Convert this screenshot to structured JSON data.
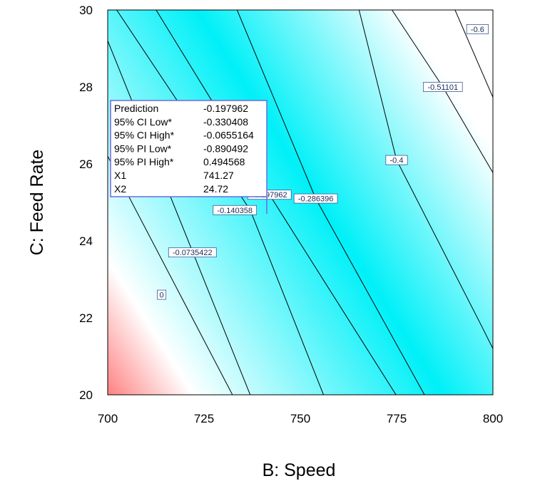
{
  "chart_data": {
    "type": "contour",
    "xlabel": "B: Speed",
    "ylabel": "C: Feed Rate",
    "xlim": [
      700,
      800
    ],
    "ylim": [
      20,
      30
    ],
    "x_ticks": [
      "700",
      "725",
      "750",
      "775",
      "800"
    ],
    "y_ticks": [
      "20",
      "22",
      "24",
      "26",
      "28",
      "30"
    ],
    "colors": {
      "low": "#ff8080",
      "mid": "#ffffff",
      "high": "#00f0f8",
      "contour_line": "#000000",
      "label_border": "#3c5a99",
      "tooltip_border": "#6a6ae0"
    },
    "contour_levels": [
      {
        "label": "0",
        "points": [
          [
            700,
            26.2
          ],
          [
            735,
            19.5
          ]
        ],
        "label_at": [
          714,
          22.6
        ]
      },
      {
        "label": "-0.0735422",
        "points": [
          [
            700,
            29.2
          ],
          [
            739,
            19.5
          ]
        ],
        "label_at": [
          722,
          23.7
        ]
      },
      {
        "label": "-0.140358",
        "points": [
          [
            700,
            30.35
          ],
          [
            737,
            24.8
          ],
          [
            758,
            19.5
          ]
        ],
        "label_at": [
          733,
          24.8
        ]
      },
      {
        "label": "-0.197962",
        "points": [
          [
            709.5,
            30.5
          ],
          [
            742,
            25.2
          ],
          [
            778,
            19.5
          ]
        ],
        "label_at": [
          742,
          25.2
        ]
      },
      {
        "label": "-0.286396",
        "points": [
          [
            731.5,
            30.5
          ],
          [
            754,
            25.1
          ],
          [
            785,
            19.5
          ]
        ],
        "label_at": [
          754,
          25.1
        ]
      },
      {
        "label": "-0.4",
        "points": [
          [
            764,
            30.5
          ],
          [
            775,
            26.1
          ],
          [
            797,
            21.8
          ],
          [
            801,
            21.0
          ]
        ],
        "label_at": [
          775,
          26.1
        ]
      },
      {
        "label": "-0.51101",
        "points": [
          [
            770.5,
            30.5
          ],
          [
            787,
            28.0
          ],
          [
            801,
            25.6
          ]
        ],
        "label_at": [
          787,
          28.0
        ]
      },
      {
        "label": "-0.6",
        "points": [
          [
            788,
            30.5
          ],
          [
            801,
            27.5
          ]
        ],
        "label_at": [
          796,
          29.5
        ]
      }
    ],
    "tooltip": {
      "rows": [
        {
          "label": "Prediction",
          "value": "-0.197962"
        },
        {
          "label": "95% CI Low*",
          "value": "-0.330408"
        },
        {
          "label": "95% CI High*",
          "value": "-0.0655164"
        },
        {
          "label": "95% PI Low*",
          "value": "-0.890492"
        },
        {
          "label": "95% PI High*",
          "value": "0.494568"
        },
        {
          "label": "X1",
          "value": "741.27"
        },
        {
          "label": "X2",
          "value": "24.72"
        }
      ],
      "anchor": [
        741.27,
        24.72
      ]
    }
  }
}
